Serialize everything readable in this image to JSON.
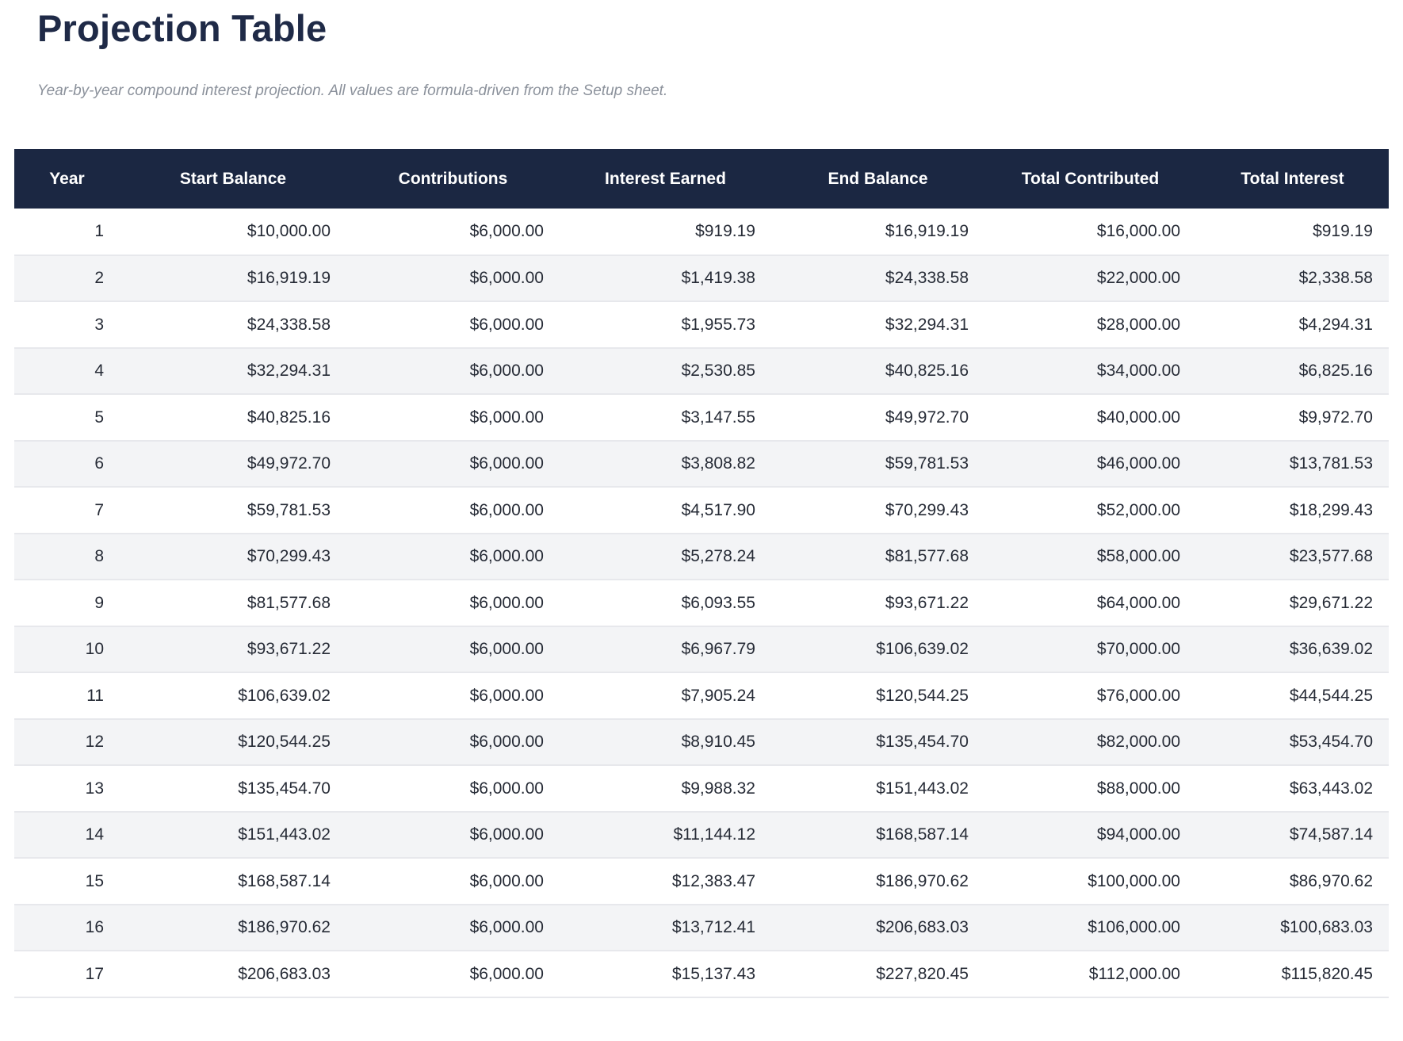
{
  "page": {
    "title": "Projection Table",
    "subtitle": "Year-by-year compound interest projection. All values are formula-driven from the Setup sheet."
  },
  "colors": {
    "header_bg": "#1b2742",
    "header_text": "#ffffff",
    "title": "#1f2a47",
    "subtitle": "#8b919b",
    "row_alt_bg": "#f3f4f6",
    "row_border": "#e7e8ec",
    "cell_text": "#262b36",
    "page_bg": "#ffffff"
  },
  "chart_data": {
    "type": "table",
    "title": "Projection Table",
    "columns": [
      "Year",
      "Start Balance",
      "Contributions",
      "Interest Earned",
      "End Balance",
      "Total Contributed",
      "Total Interest"
    ],
    "rows": [
      [
        "1",
        "$10,000.00",
        "$6,000.00",
        "$919.19",
        "$16,919.19",
        "$16,000.00",
        "$919.19"
      ],
      [
        "2",
        "$16,919.19",
        "$6,000.00",
        "$1,419.38",
        "$24,338.58",
        "$22,000.00",
        "$2,338.58"
      ],
      [
        "3",
        "$24,338.58",
        "$6,000.00",
        "$1,955.73",
        "$32,294.31",
        "$28,000.00",
        "$4,294.31"
      ],
      [
        "4",
        "$32,294.31",
        "$6,000.00",
        "$2,530.85",
        "$40,825.16",
        "$34,000.00",
        "$6,825.16"
      ],
      [
        "5",
        "$40,825.16",
        "$6,000.00",
        "$3,147.55",
        "$49,972.70",
        "$40,000.00",
        "$9,972.70"
      ],
      [
        "6",
        "$49,972.70",
        "$6,000.00",
        "$3,808.82",
        "$59,781.53",
        "$46,000.00",
        "$13,781.53"
      ],
      [
        "7",
        "$59,781.53",
        "$6,000.00",
        "$4,517.90",
        "$70,299.43",
        "$52,000.00",
        "$18,299.43"
      ],
      [
        "8",
        "$70,299.43",
        "$6,000.00",
        "$5,278.24",
        "$81,577.68",
        "$58,000.00",
        "$23,577.68"
      ],
      [
        "9",
        "$81,577.68",
        "$6,000.00",
        "$6,093.55",
        "$93,671.22",
        "$64,000.00",
        "$29,671.22"
      ],
      [
        "10",
        "$93,671.22",
        "$6,000.00",
        "$6,967.79",
        "$106,639.02",
        "$70,000.00",
        "$36,639.02"
      ],
      [
        "11",
        "$106,639.02",
        "$6,000.00",
        "$7,905.24",
        "$120,544.25",
        "$76,000.00",
        "$44,544.25"
      ],
      [
        "12",
        "$120,544.25",
        "$6,000.00",
        "$8,910.45",
        "$135,454.70",
        "$82,000.00",
        "$53,454.70"
      ],
      [
        "13",
        "$135,454.70",
        "$6,000.00",
        "$9,988.32",
        "$151,443.02",
        "$88,000.00",
        "$63,443.02"
      ],
      [
        "14",
        "$151,443.02",
        "$6,000.00",
        "$11,144.12",
        "$168,587.14",
        "$94,000.00",
        "$74,587.14"
      ],
      [
        "15",
        "$168,587.14",
        "$6,000.00",
        "$12,383.47",
        "$186,970.62",
        "$100,000.00",
        "$86,970.62"
      ],
      [
        "16",
        "$186,970.62",
        "$6,000.00",
        "$13,712.41",
        "$206,683.03",
        "$106,000.00",
        "$100,683.03"
      ],
      [
        "17",
        "$206,683.03",
        "$6,000.00",
        "$15,137.43",
        "$227,820.45",
        "$112,000.00",
        "$115,820.45"
      ]
    ]
  }
}
